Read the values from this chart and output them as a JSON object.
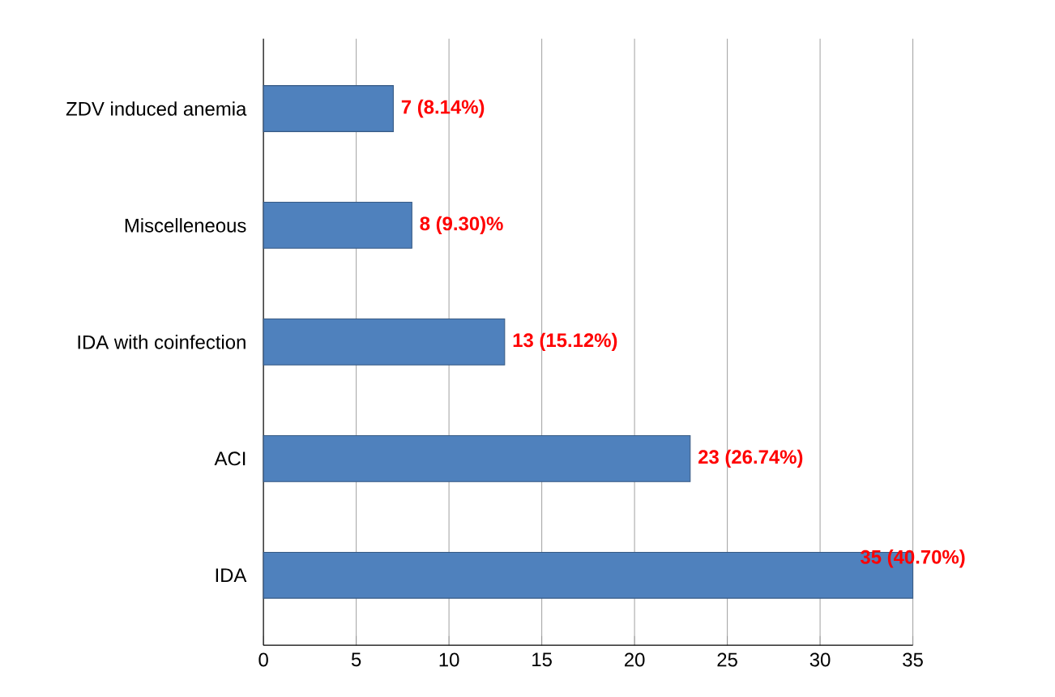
{
  "chart_data": {
    "type": "bar",
    "orientation": "horizontal",
    "categories": [
      "ZDV induced anemia",
      "Miscelleneous",
      "IDA with coinfection",
      "ACI",
      "IDA"
    ],
    "values": [
      7,
      8,
      13,
      23,
      35
    ],
    "value_labels": [
      "7 (8.14%)",
      "8 (9.30)%",
      "13 (15.12%)",
      "23 (26.74%)",
      "35 (40.70%)"
    ],
    "color": "#4f81bd",
    "xlim": [
      0,
      35
    ],
    "xticks": [
      0,
      5,
      10,
      15,
      20,
      25,
      30,
      35
    ],
    "grid": "x"
  }
}
